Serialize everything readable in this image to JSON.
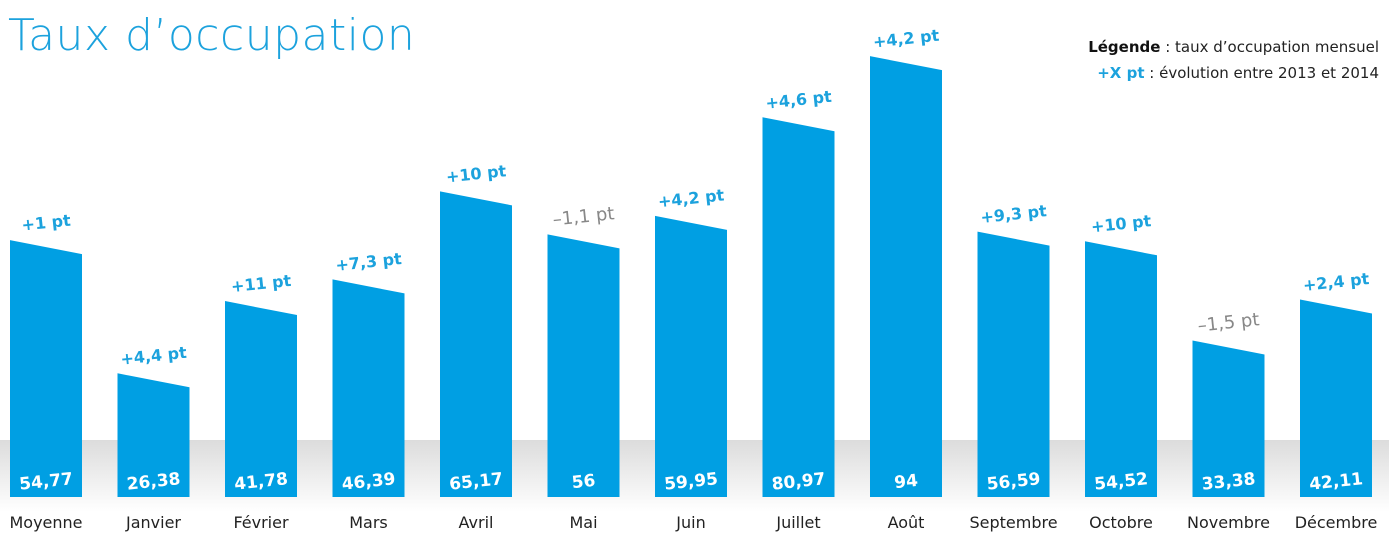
{
  "chart_data": {
    "type": "bar",
    "title": "Taux d’occupation",
    "categories": [
      "Moyenne",
      "Janvier",
      "Février",
      "Mars",
      "Avril",
      "Mai",
      "Juin",
      "Juillet",
      "Août",
      "Septembre",
      "Octobre",
      "Novembre",
      "Décembre"
    ],
    "values": [
      54.77,
      26.38,
      41.78,
      46.39,
      65.17,
      56,
      59.95,
      80.97,
      94,
      56.59,
      54.52,
      33.38,
      42.11
    ],
    "value_labels": [
      "54,77",
      "26,38",
      "41,78",
      "46,39",
      "65,17",
      "56",
      "59,95",
      "80,97",
      "94",
      "56,59",
      "54,52",
      "33,38",
      "42,11"
    ],
    "changes": [
      1,
      4.4,
      11,
      7.3,
      10,
      -1.1,
      4.2,
      4.6,
      4.2,
      9.3,
      10,
      -1.5,
      2.4
    ],
    "change_labels": [
      "+1 pt",
      "+4,4 pt",
      "+11 pt",
      "+7,3 pt",
      "+10 pt",
      "–1,1 pt",
      "+4,2 pt",
      "+4,6 pt",
      "+4,2 pt",
      "+9,3 pt",
      "+10 pt",
      "–1,5 pt",
      "+2,4 pt"
    ],
    "legend": {
      "line1_key": "Légende",
      "line1_text": " : taux d’occupation mensuel",
      "line2_key": "+X pt",
      "line2_text": " : évolution entre 2013 et 2014"
    },
    "colors": {
      "bar": "#009fe3",
      "positive": "#1ca2dd",
      "negative": "#888888",
      "title": "#1ca2dd"
    }
  }
}
